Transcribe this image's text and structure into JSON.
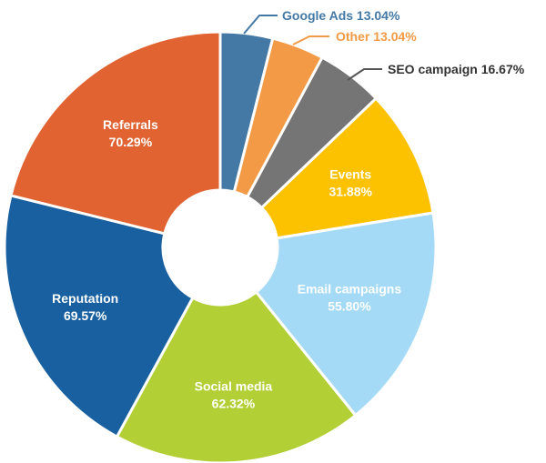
{
  "chart_data": {
    "type": "pie",
    "variant": "donut",
    "legend": "none",
    "slices": [
      {
        "label": "Google Ads",
        "value": 13.04,
        "value_text": "13.04%",
        "color": "#4479a6",
        "label_position": "outside",
        "leader_color": "#4479a6",
        "label_color": "#4479a6"
      },
      {
        "label": "Other",
        "value": 13.04,
        "value_text": "13.04%",
        "color": "#f29a45",
        "label_position": "outside",
        "leader_color": "#f29a45",
        "label_color": "#f29a45"
      },
      {
        "label": "SEO campaign",
        "value": 16.67,
        "value_text": "16.67%",
        "color": "#757575",
        "label_position": "outside",
        "leader_color": "#555555",
        "label_color": "#333333"
      },
      {
        "label": "Events",
        "value": 31.88,
        "value_text": "31.88%",
        "color": "#fcc200",
        "label_position": "inside"
      },
      {
        "label": "Email campaigns",
        "value": 55.8,
        "value_text": "55.80%",
        "color": "#a5daf6",
        "label_position": "inside"
      },
      {
        "label": "Social media",
        "value": 62.32,
        "value_text": "62.32%",
        "color": "#b2cf35",
        "label_position": "inside"
      },
      {
        "label": "Reputation",
        "value": 69.57,
        "value_text": "69.57%",
        "color": "#1860a0",
        "label_position": "inside"
      },
      {
        "label": "Referrals",
        "value": 70.29,
        "value_text": "70.29%",
        "color": "#e06331",
        "label_position": "inside"
      }
    ]
  }
}
